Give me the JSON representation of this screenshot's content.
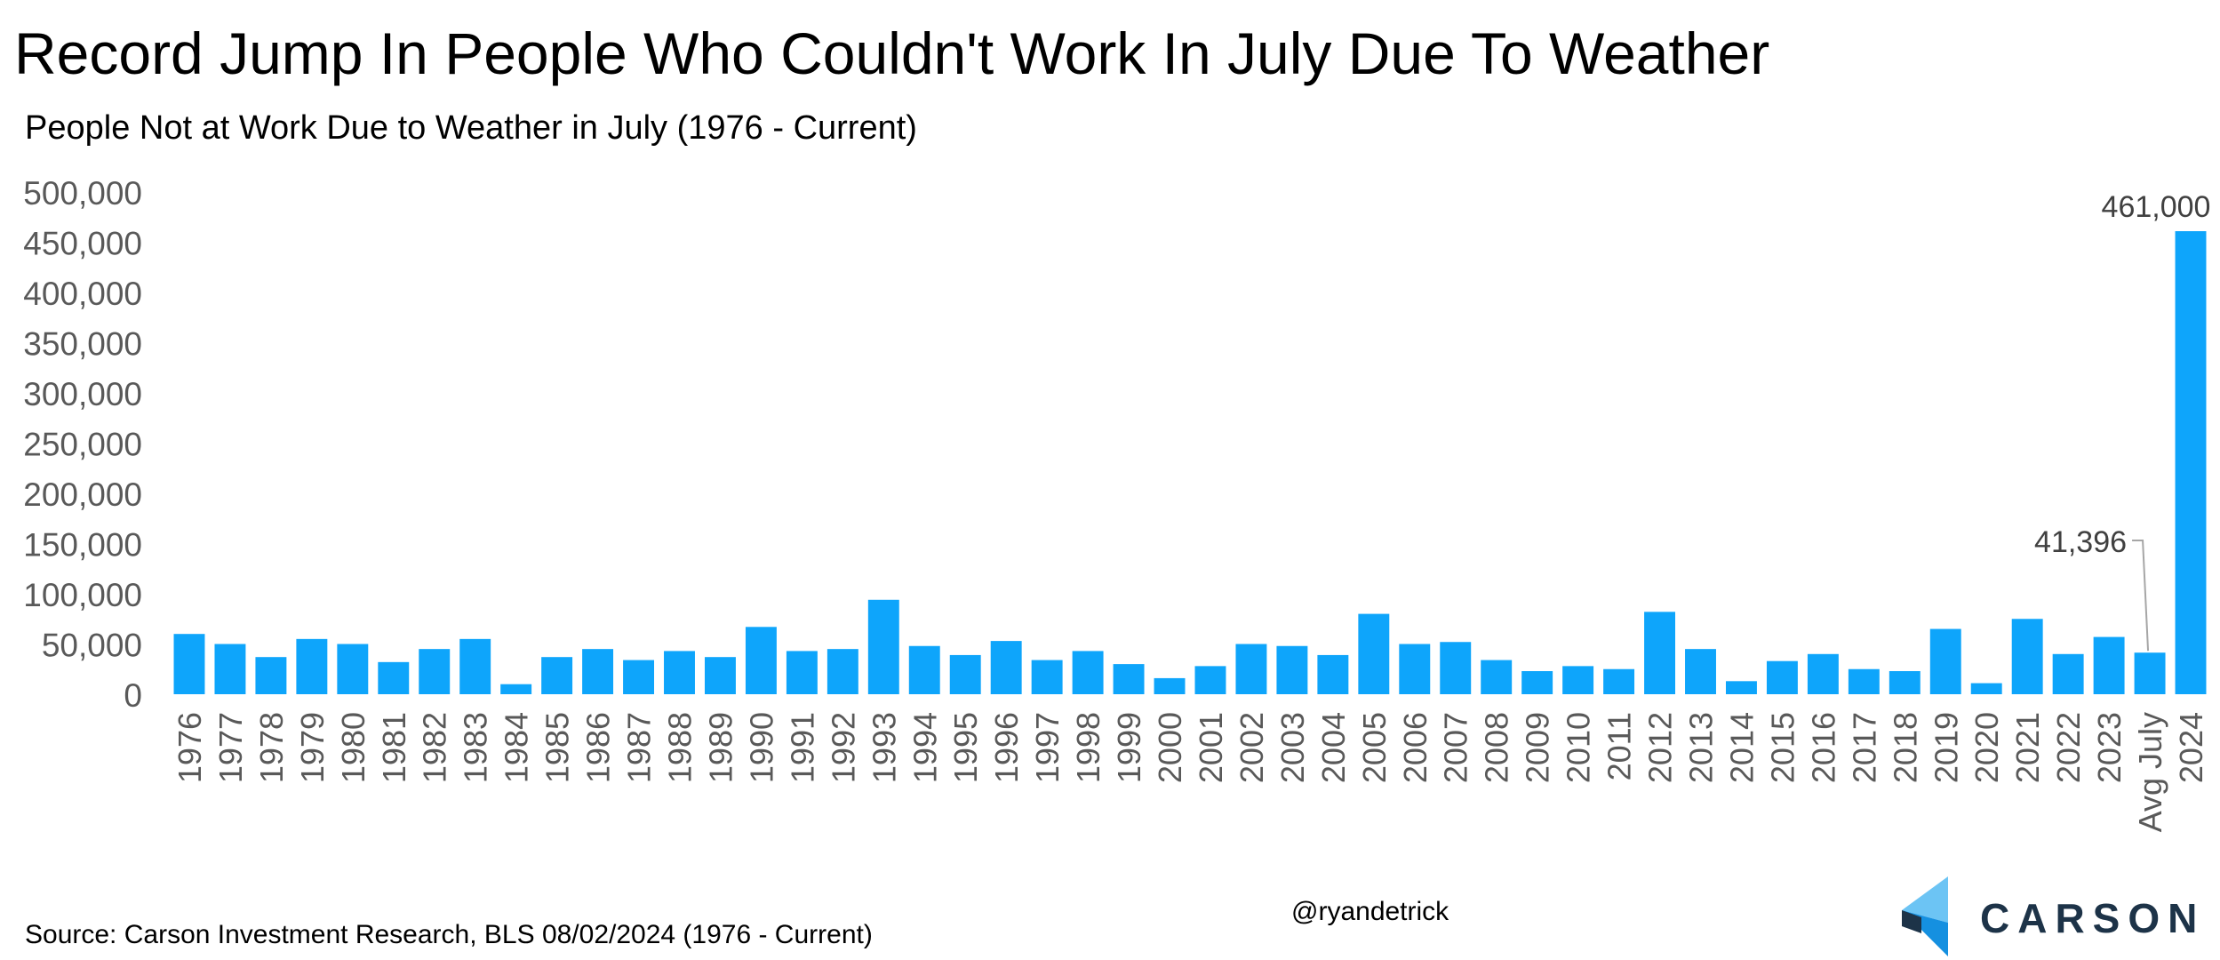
{
  "title": "Record Jump In People Who Couldn't Work In July Due To Weather",
  "subtitle": "People Not at Work Due to Weather in July (1976 - Current)",
  "source": "Source: Carson Investment Research, BLS 08/02/2024 (1976 - Current)",
  "handle": "@ryandetrick",
  "logo": {
    "text": "CARSON",
    "icon": "carson-chevron-logo"
  },
  "colors": {
    "bar": "#0ea5fb",
    "tick_text": "#595959",
    "label_text": "#404040",
    "leader": "#a6a6a6",
    "brand": "#1d3348"
  },
  "chart_data": {
    "type": "bar",
    "title": "Record Jump In People Who Couldn't Work In July Due To Weather",
    "subtitle": "People Not at Work Due to Weather in July (1976 - Current)",
    "xlabel": "",
    "ylabel": "",
    "ylim": [
      0,
      500000
    ],
    "yticks": [
      0,
      50000,
      100000,
      150000,
      200000,
      250000,
      300000,
      350000,
      400000,
      450000,
      500000
    ],
    "ytick_labels": [
      "0",
      "50,000",
      "100,000",
      "150,000",
      "200,000",
      "250,000",
      "300,000",
      "350,000",
      "400,000",
      "450,000",
      "500,000"
    ],
    "grid": false,
    "legend": "none",
    "categories": [
      "1976",
      "1977",
      "1978",
      "1979",
      "1980",
      "1981",
      "1982",
      "1983",
      "1984",
      "1985",
      "1986",
      "1987",
      "1988",
      "1989",
      "1990",
      "1991",
      "1992",
      "1993",
      "1994",
      "1995",
      "1996",
      "1997",
      "1998",
      "1999",
      "2000",
      "2001",
      "2002",
      "2003",
      "2004",
      "2005",
      "2006",
      "2007",
      "2008",
      "2009",
      "2010",
      "2011",
      "2012",
      "2013",
      "2014",
      "2015",
      "2016",
      "2017",
      "2018",
      "2019",
      "2020",
      "2021",
      "2022",
      "2023",
      "Avg July",
      "2024"
    ],
    "values": [
      60000,
      50000,
      37000,
      55000,
      50000,
      32000,
      45000,
      55000,
      10000,
      37000,
      45000,
      34000,
      43000,
      37000,
      67000,
      43000,
      45000,
      94000,
      48000,
      39000,
      53000,
      34000,
      43000,
      30000,
      16000,
      28000,
      50000,
      48000,
      39000,
      80000,
      50000,
      52000,
      34000,
      23000,
      28000,
      25000,
      82000,
      45000,
      13000,
      33000,
      40000,
      25000,
      23000,
      65000,
      11000,
      75000,
      40000,
      57000,
      41396,
      461000
    ],
    "data_labels": [
      {
        "category": "Avg July",
        "text": "41,396"
      },
      {
        "category": "2024",
        "text": "461,000"
      }
    ]
  }
}
